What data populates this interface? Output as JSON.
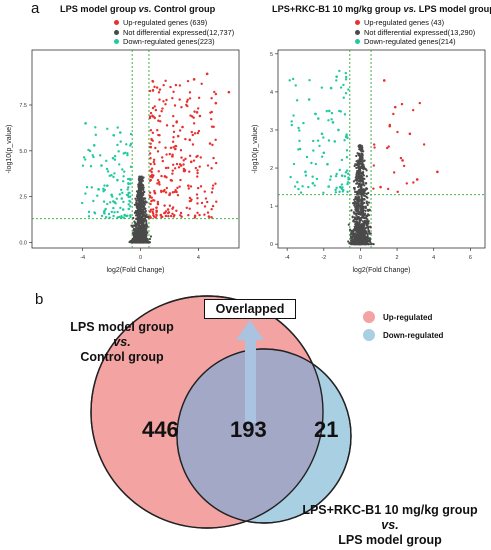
{
  "panel_a_letter": "a",
  "panel_b_letter": "b",
  "colors": {
    "up": "#e8302f",
    "not_diff": "#4a4a4a",
    "down": "#22c9a0",
    "guide": "#2eaa2e",
    "venn_left": "#f4a3a3",
    "venn_right": "#a9cfe3",
    "venn_overlap": "#a3a8c6",
    "arrow": "#a9c3e0"
  },
  "chart_data": [
    {
      "type": "scatter",
      "title_parts": [
        "LPS model group ",
        "vs.",
        " Control group"
      ],
      "xlabel": "log2(Fold Change)",
      "ylabel": "-log10(p_value)",
      "xlim": [
        -7.5,
        6.8
      ],
      "ylim": [
        -0.3,
        10.5
      ],
      "xticks": [
        -4,
        0,
        4
      ],
      "yticks": [
        "0.0",
        "2.5",
        "5.0",
        "7.5"
      ],
      "ytick_values": [
        0,
        2.5,
        5,
        7.5
      ],
      "vlines": [
        -0.58,
        0.58
      ],
      "hline": 1.3,
      "legend": [
        {
          "label": "Up-regulated genes (639)",
          "group": "up"
        },
        {
          "label": "Not differential expressed(12,737)",
          "group": "not_diff"
        },
        {
          "label": "Down-regulated genes(223)",
          "group": "down"
        }
      ],
      "series": [
        {
          "name": "Up-regulated genes (639)",
          "group": "up",
          "x": [
            1.2,
            2.1,
            3.4,
            2.8,
            1.6,
            4.1,
            3.0,
            2.4,
            1.9,
            5.2,
            3.7,
            2.9,
            1.4,
            2.2,
            4.6,
            3.3,
            1.1,
            2.6,
            3.9,
            2.0,
            6.1,
            4.8,
            3.5,
            1.7,
            2.5
          ],
          "y": [
            2.1,
            3.4,
            5.6,
            4.2,
            2.8,
            6.9,
            3.9,
            5.1,
            1.8,
            7.6,
            8.9,
            6.3,
            1.5,
            4.7,
            9.2,
            3.1,
            1.9,
            5.8,
            7.1,
            2.6,
            8.2,
            5.4,
            4.4,
            3.6,
            6.6
          ]
        },
        {
          "name": "Not differential expressed(12,737)",
          "group": "not_diff",
          "x": [
            -0.4,
            0.2,
            -0.1,
            0.3,
            -0.3,
            0.1,
            0.0,
            -0.2,
            0.4,
            -0.5,
            0.5,
            0.2,
            -0.3,
            0.1,
            -0.1,
            0.3,
            -0.4,
            0.0,
            0.2,
            -0.2
          ],
          "y": [
            0.4,
            0.8,
            1.2,
            0.3,
            1.7,
            2.1,
            0.6,
            2.6,
            1.0,
            0.2,
            1.4,
            3.0,
            0.9,
            0.1,
            1.9,
            2.4,
            0.5,
            3.4,
            0.7,
            1.5
          ]
        },
        {
          "name": "Down-regulated genes(223)",
          "group": "down",
          "x": [
            -1.2,
            -2.0,
            -1.6,
            -2.7,
            -1.1,
            -3.2,
            -1.8,
            -2.3,
            -1.4,
            -2.9,
            -1.9,
            -3.8,
            -1.3,
            -2.5
          ],
          "y": [
            1.8,
            2.6,
            3.4,
            4.2,
            1.5,
            5.3,
            2.2,
            3.1,
            6.0,
            2.9,
            4.6,
            6.5,
            2.4,
            1.6
          ]
        }
      ]
    },
    {
      "type": "scatter",
      "title_parts": [
        "LPS+RKC-B1 10 mg/kg group ",
        "vs.",
        " LPS model group"
      ],
      "xlabel": "log2(Fold Change)",
      "ylabel": "-log10(p_value)",
      "xlim": [
        -4.5,
        6.8
      ],
      "ylim": [
        -0.1,
        5.1
      ],
      "xticks": [
        -4,
        -2,
        0,
        2,
        4,
        6
      ],
      "yticks": [
        "0",
        "1",
        "2",
        "3",
        "4",
        "5"
      ],
      "ytick_values": [
        0,
        1,
        2,
        3,
        4,
        5
      ],
      "vlines": [
        -0.58,
        0.58
      ],
      "hline": 1.3,
      "legend": [
        {
          "label": "Up-regulated genes (43)",
          "group": "up"
        },
        {
          "label": "Not differential expressed(13,290)",
          "group": "not_diff"
        },
        {
          "label": "Down-regulated genes(214)",
          "group": "down"
        }
      ],
      "series": [
        {
          "name": "Up-regulated genes (43)",
          "group": "up",
          "x": [
            1.1,
            2.3,
            1.6,
            3.1,
            1.3,
            2.7,
            4.2,
            1.9
          ],
          "y": [
            1.5,
            2.2,
            3.1,
            1.7,
            4.3,
            2.9,
            1.9,
            3.6
          ]
        },
        {
          "name": "Not differential expressed(13,290)",
          "group": "not_diff",
          "x": [
            -0.4,
            0.2,
            -0.1,
            0.3,
            -0.3,
            0.1,
            0.0,
            -0.2,
            0.4,
            -0.5,
            0.5,
            0.2,
            -0.3,
            0.1,
            -0.1,
            0.3,
            -0.4,
            0.0,
            0.2,
            -0.2
          ],
          "y": [
            0.2,
            0.5,
            0.8,
            0.3,
            1.1,
            1.4,
            0.4,
            1.7,
            0.6,
            0.1,
            0.9,
            2.0,
            0.7,
            0.15,
            1.25,
            1.6,
            0.35,
            2.3,
            0.55,
            1.0
          ]
        },
        {
          "name": "Down-regulated genes(214)",
          "group": "down",
          "x": [
            -1.1,
            -1.8,
            -1.4,
            -2.3,
            -1.0,
            -2.8,
            -1.6,
            -2.0,
            -1.2,
            -2.6,
            -1.7,
            -3.3,
            -1.3,
            -2.1,
            -3.0,
            -1.5
          ],
          "y": [
            1.5,
            2.1,
            2.7,
            3.3,
            1.8,
            3.8,
            4.1,
            2.4,
            3.0,
            1.6,
            3.5,
            2.5,
            4.4,
            2.9,
            1.9,
            3.2
          ]
        }
      ]
    }
  ],
  "venn": {
    "left_label_line1": "LPS model group",
    "left_label_line2": "vs.",
    "left_label_line3": "Control group",
    "right_label_line1": "LPS+RKC-B1 10 mg/kg group",
    "right_label_line2": "vs.",
    "right_label_line3": "LPS model group",
    "count_left": "446",
    "count_overlap": "193",
    "count_right": "21",
    "overlap_box": "Overlapped",
    "legend_up": "Up-regulated",
    "legend_down": "Down-regulated"
  }
}
